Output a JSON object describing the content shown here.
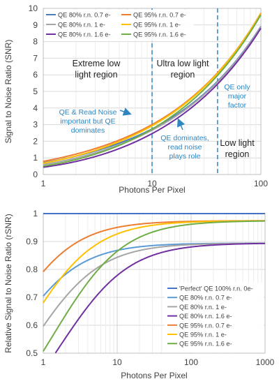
{
  "chart_data": [
    {
      "type": "line",
      "x_scale": "log",
      "xlim": [
        1,
        100
      ],
      "ylim": [
        0,
        10
      ],
      "xlabel": "Photons Per Pixel",
      "ylabel": "Signal to Noise Ratio (SNR)",
      "x_ticks": [
        1,
        10,
        100
      ],
      "y_ticks": [
        0,
        1,
        2,
        3,
        4,
        5,
        6,
        7,
        8,
        9,
        10
      ],
      "grid": true,
      "legend_placement": "top-left",
      "region_dividers": [
        10,
        40
      ],
      "annotations": [
        {
          "id": "extreme",
          "lines": [
            "Extreme low",
            "light region"
          ],
          "color": "#222222"
        },
        {
          "id": "ultra",
          "lines": [
            "Ultra low light",
            "region"
          ],
          "color": "#222222"
        },
        {
          "id": "qe_only",
          "lines": [
            "QE only",
            "major",
            "factor"
          ],
          "color": "#2e86c1"
        },
        {
          "id": "qe_rn",
          "lines": [
            "QE & Read Noise",
            "important but QE",
            "dominates"
          ],
          "color": "#2e86c1"
        },
        {
          "id": "qe_dom",
          "lines": [
            "QE dominates,",
            "read noise",
            "plays role"
          ],
          "color": "#2e86c1"
        },
        {
          "id": "low",
          "lines": [
            "Low light",
            "region"
          ],
          "color": "#222222"
        }
      ],
      "series": [
        {
          "name": "QE 80% r.n.  0.7 e-",
          "qe": 0.8,
          "rn": 0.7,
          "color": "#4a7ebb"
        },
        {
          "name": "QE 95% r.n.  0.7 e-",
          "qe": 0.95,
          "rn": 0.7,
          "color": "#ed7d31"
        },
        {
          "name": "QE 80% r.n.  1 e-",
          "qe": 0.8,
          "rn": 1.0,
          "color": "#a5a5a5"
        },
        {
          "name": "QE 95% r.n.  1 e-",
          "qe": 0.95,
          "rn": 1.0,
          "color": "#ffc000"
        },
        {
          "name": "QE 80% r.n.  1.6 e-",
          "qe": 0.8,
          "rn": 1.6,
          "color": "#7030a0"
        },
        {
          "name": "QE 95% r.n.  1.6 e-",
          "qe": 0.95,
          "rn": 1.6,
          "color": "#70ad47"
        }
      ]
    },
    {
      "type": "line",
      "x_scale": "log",
      "xlim": [
        1,
        1000
      ],
      "ylim": [
        0.5,
        1
      ],
      "xlabel": "Photons Per Pixel",
      "ylabel": "Relative Signal to Noise Ratio (rSNR)",
      "x_ticks": [
        1,
        10,
        100,
        1000
      ],
      "y_ticks": [
        0.5,
        0.6,
        0.7,
        0.8,
        0.9,
        1
      ],
      "grid": true,
      "legend_placement": "bottom-right",
      "series": [
        {
          "name": "'Perfect' QE 100% r.n. 0e-",
          "qe": 1.0,
          "rn": 0.0,
          "color": "#4472c4"
        },
        {
          "name": "QE 80% r.n.  0.7 e-",
          "qe": 0.8,
          "rn": 0.7,
          "color": "#5b9bd5"
        },
        {
          "name": "QE 80% r.n.  1 e-",
          "qe": 0.8,
          "rn": 1.0,
          "color": "#a5a5a5"
        },
        {
          "name": "QE 80% r.n.  1.6 e-",
          "qe": 0.8,
          "rn": 1.6,
          "color": "#7030a0"
        },
        {
          "name": "QE 95% r.n.  0.7 e-",
          "qe": 0.95,
          "rn": 0.7,
          "color": "#ed7d31"
        },
        {
          "name": "QE 95% r.n.  1 e-",
          "qe": 0.95,
          "rn": 1.0,
          "color": "#ffc000"
        },
        {
          "name": "QE 95% r.n.  1.6 e-",
          "qe": 0.95,
          "rn": 1.6,
          "color": "#70ad47"
        }
      ]
    }
  ]
}
